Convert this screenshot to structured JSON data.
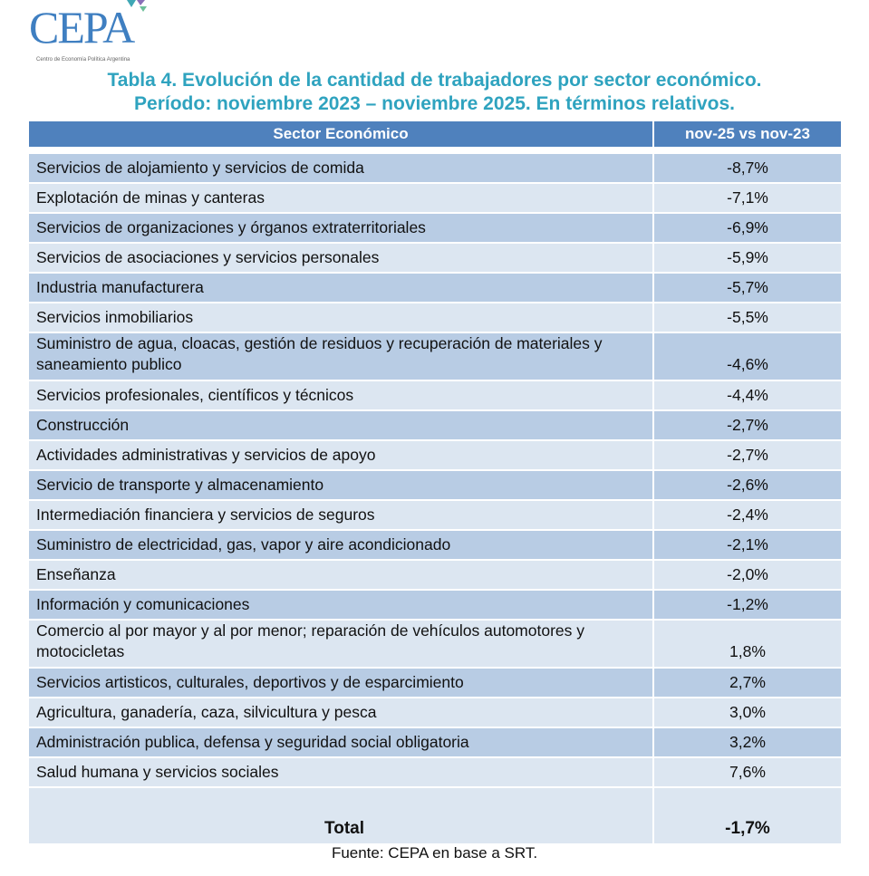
{
  "logo": {
    "name": "CEPA",
    "subtitle": "Centro de Economía Política Argentina"
  },
  "title": {
    "line1": "Tabla 4. Evolución de la cantidad de trabajadores por sector económico.",
    "line2": "Período: noviembre 2023 – noviembre 2025. En términos relativos."
  },
  "table": {
    "headers": [
      "Sector Económico",
      "nov-25 vs nov-23"
    ],
    "rows": [
      {
        "sector": "Servicios de alojamiento y servicios de comida",
        "value": "-8,7%"
      },
      {
        "sector": "Explotación de minas y canteras",
        "value": "-7,1%"
      },
      {
        "sector": "Servicios de organizaciones y órganos extraterritoriales",
        "value": "-6,9%"
      },
      {
        "sector": "Servicios de asociaciones y servicios personales",
        "value": "-5,9%"
      },
      {
        "sector": "Industria manufacturera",
        "value": "-5,7%"
      },
      {
        "sector": "Servicios inmobiliarios",
        "value": "-5,5%"
      },
      {
        "sector": "Suministro de agua, cloacas, gestión de residuos y recuperación de materiales y saneamiento publico",
        "value": "-4,6%"
      },
      {
        "sector": "Servicios profesionales, científicos y técnicos",
        "value": "-4,4%"
      },
      {
        "sector": "Construcción",
        "value": "-2,7%"
      },
      {
        "sector": "Actividades administrativas y servicios de apoyo",
        "value": "-2,7%"
      },
      {
        "sector": "Servicio de transporte y almacenamiento",
        "value": "-2,6%"
      },
      {
        "sector": "Intermediación financiera y servicios de seguros",
        "value": "-2,4%"
      },
      {
        "sector": "Suministro de electricidad, gas, vapor y aire acondicionado",
        "value": "-2,1%"
      },
      {
        "sector": "Enseñanza",
        "value": "-2,0%"
      },
      {
        "sector": "Información y comunicaciones",
        "value": "-1,2%"
      },
      {
        "sector": "Comercio al por mayor y al por menor; reparación de vehículos automotores y motocicletas",
        "value": "1,8%"
      },
      {
        "sector": "Servicios artisticos, culturales, deportivos y de esparcimiento",
        "value": "2,7%"
      },
      {
        "sector": "Agricultura, ganadería, caza, silvicultura y pesca",
        "value": "3,0%"
      },
      {
        "sector": "Administración publica, defensa y seguridad social obligatoria",
        "value": "3,2%"
      },
      {
        "sector": "Salud humana y servicios sociales",
        "value": "7,6%"
      }
    ],
    "total": {
      "label": "Total",
      "value": "-1,7%"
    }
  },
  "source": "Fuente: CEPA en base a SRT."
}
